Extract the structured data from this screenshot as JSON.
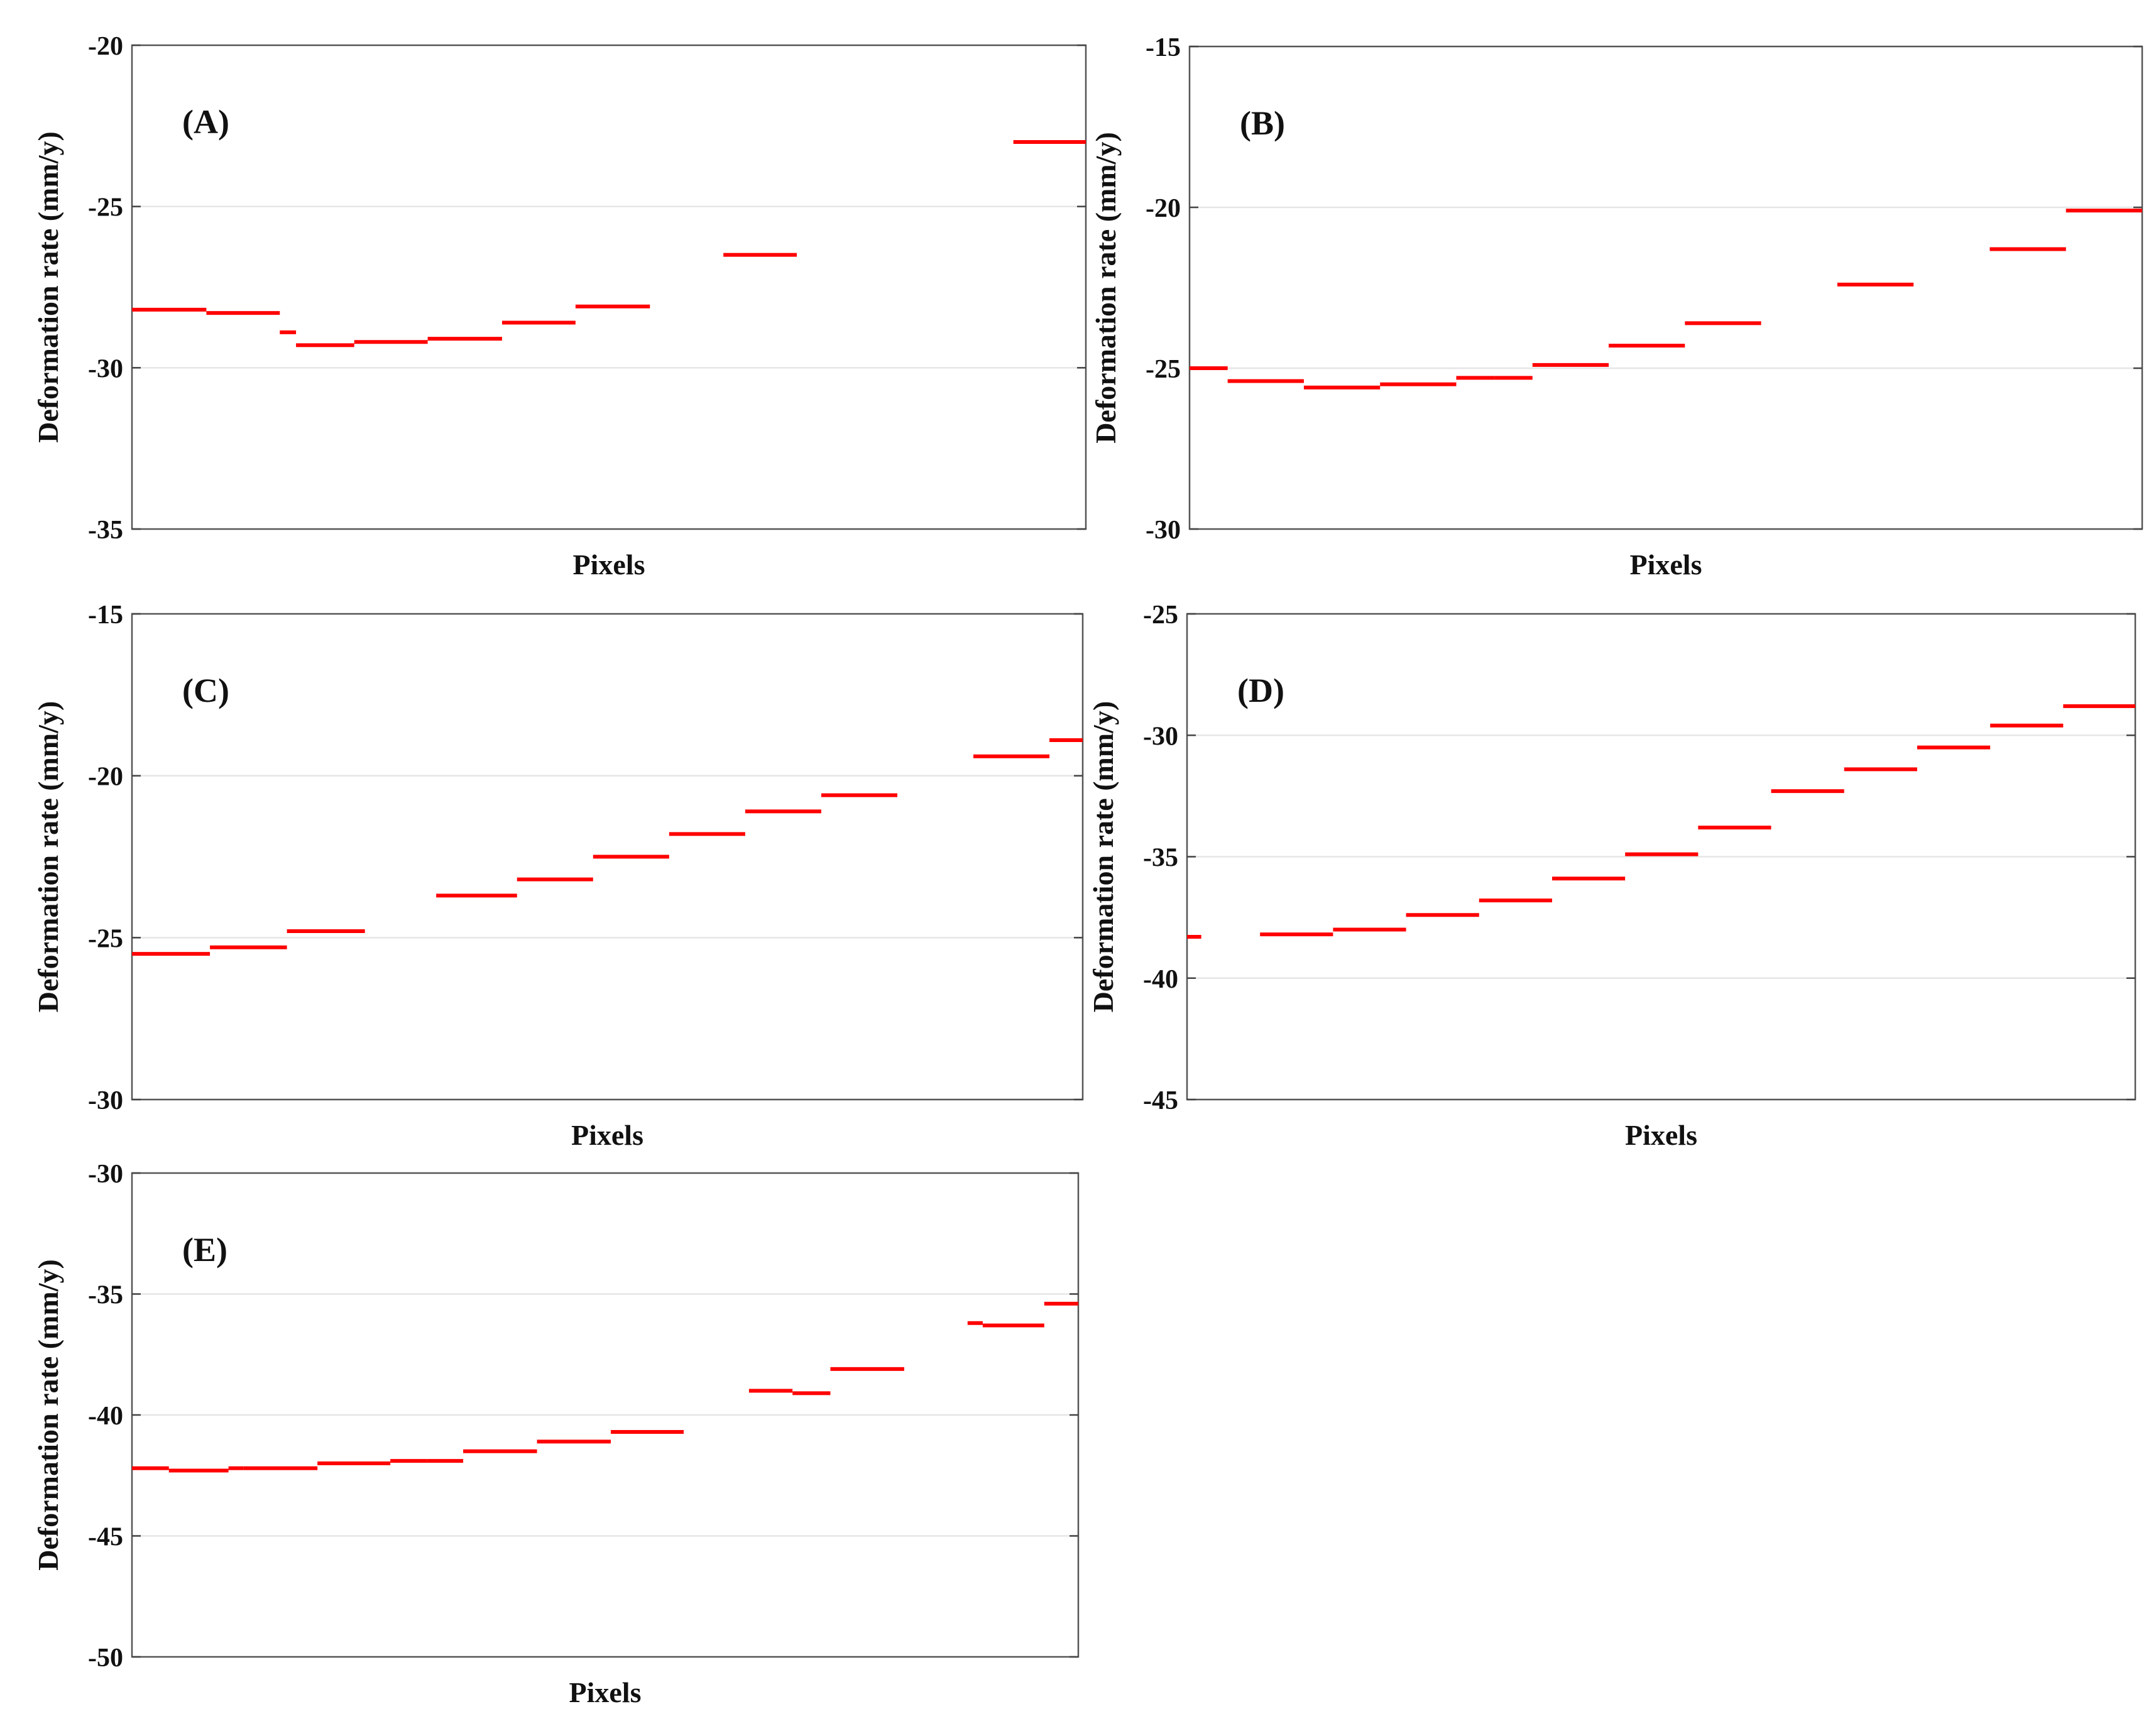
{
  "colors": {
    "series": "#ff0000",
    "frame": "#555555",
    "grid": "#e6e6e6",
    "text": "#111111"
  },
  "chart_data": [
    {
      "type": "line",
      "label": "(A)",
      "xlabel": "Pixels",
      "ylabel": "Deformation rate (mm/y)",
      "ylim": [
        -35,
        -20
      ],
      "yticks": [
        -20,
        -25,
        -30,
        -35
      ],
      "xlim": [
        0,
        100
      ],
      "grid": true,
      "segments": [
        {
          "x": [
            0.0,
            7.8
          ],
          "y": -28.2
        },
        {
          "x": [
            7.8,
            15.5
          ],
          "y": -28.3
        },
        {
          "x": [
            15.5,
            17.2
          ],
          "y": -28.9
        },
        {
          "x": [
            17.2,
            23.3
          ],
          "y": -29.3
        },
        {
          "x": [
            23.3,
            31.0
          ],
          "y": -29.2
        },
        {
          "x": [
            31.0,
            38.8
          ],
          "y": -29.1
        },
        {
          "x": [
            38.8,
            46.5
          ],
          "y": -28.6
        },
        {
          "x": [
            46.5,
            54.3
          ],
          "y": -28.1
        },
        {
          "x": [
            62.0,
            69.7
          ],
          "y": -26.5
        },
        {
          "x": [
            92.4,
            100.0
          ],
          "y": -23.0
        }
      ]
    },
    {
      "type": "line",
      "label": "(B)",
      "xlabel": "Pixels",
      "ylabel": "Deformation rate (mm/y)",
      "ylim": [
        -30,
        -15
      ],
      "yticks": [
        -15,
        -20,
        -25,
        -30
      ],
      "xlim": [
        0,
        100
      ],
      "grid": true,
      "segments": [
        {
          "x": [
            0.0,
            4.0
          ],
          "y": -25.0
        },
        {
          "x": [
            4.0,
            12.0
          ],
          "y": -25.4
        },
        {
          "x": [
            12.0,
            20.0
          ],
          "y": -25.6
        },
        {
          "x": [
            20.0,
            28.0
          ],
          "y": -25.5
        },
        {
          "x": [
            28.0,
            32.0
          ],
          "y": -25.3
        },
        {
          "x": [
            32.0,
            36.0
          ],
          "y": -25.3
        },
        {
          "x": [
            36.0,
            44.0
          ],
          "y": -24.9
        },
        {
          "x": [
            44.0,
            52.0
          ],
          "y": -24.3
        },
        {
          "x": [
            52.0,
            60.0
          ],
          "y": -23.6
        },
        {
          "x": [
            68.0,
            76.0
          ],
          "y": -22.4
        },
        {
          "x": [
            84.0,
            92.0
          ],
          "y": -21.3
        },
        {
          "x": [
            92.0,
            100.0
          ],
          "y": -20.1
        }
      ]
    },
    {
      "type": "line",
      "label": "(C)",
      "xlabel": "Pixels",
      "ylabel": "Deformation rate (mm/y)",
      "ylim": [
        -30,
        -15
      ],
      "yticks": [
        -15,
        -20,
        -25,
        -30
      ],
      "xlim": [
        0,
        100
      ],
      "grid": true,
      "segments": [
        {
          "x": [
            0.0,
            8.2
          ],
          "y": -25.5
        },
        {
          "x": [
            8.2,
            16.3
          ],
          "y": -25.3
        },
        {
          "x": [
            16.3,
            24.5
          ],
          "y": -24.8
        },
        {
          "x": [
            32.0,
            40.5
          ],
          "y": -23.7
        },
        {
          "x": [
            40.5,
            48.5
          ],
          "y": -23.2
        },
        {
          "x": [
            48.5,
            56.5
          ],
          "y": -22.5
        },
        {
          "x": [
            56.5,
            64.5
          ],
          "y": -21.8
        },
        {
          "x": [
            64.5,
            72.5
          ],
          "y": -21.1
        },
        {
          "x": [
            72.5,
            80.5
          ],
          "y": -20.6
        },
        {
          "x": [
            88.5,
            96.5
          ],
          "y": -19.4
        },
        {
          "x": [
            96.5,
            100.0
          ],
          "y": -18.9
        }
      ]
    },
    {
      "type": "line",
      "label": "(D)",
      "xlabel": "Pixels",
      "ylabel": "Deformation rate (mm/y)",
      "ylim": [
        -45,
        -25
      ],
      "yticks": [
        -25,
        -30,
        -35,
        -40,
        -45
      ],
      "xlim": [
        0,
        100
      ],
      "grid": true,
      "segments": [
        {
          "x": [
            0.0,
            1.5
          ],
          "y": -38.3
        },
        {
          "x": [
            7.7,
            15.4
          ],
          "y": -38.2
        },
        {
          "x": [
            15.4,
            23.1
          ],
          "y": -38.0
        },
        {
          "x": [
            23.1,
            30.8
          ],
          "y": -37.4
        },
        {
          "x": [
            30.8,
            38.5
          ],
          "y": -36.8
        },
        {
          "x": [
            38.5,
            46.2
          ],
          "y": -35.9
        },
        {
          "x": [
            46.2,
            53.9
          ],
          "y": -34.9
        },
        {
          "x": [
            53.9,
            61.6
          ],
          "y": -33.8
        },
        {
          "x": [
            61.6,
            69.3
          ],
          "y": -32.3
        },
        {
          "x": [
            69.3,
            77.0
          ],
          "y": -31.4
        },
        {
          "x": [
            77.0,
            84.7
          ],
          "y": -30.5
        },
        {
          "x": [
            84.7,
            92.4
          ],
          "y": -29.6
        },
        {
          "x": [
            92.4,
            100.0
          ],
          "y": -28.8
        }
      ]
    },
    {
      "type": "line",
      "label": "(E)",
      "xlabel": "Pixels",
      "ylabel": "Deformation rate (mm/y)",
      "ylim": [
        -50,
        -30
      ],
      "yticks": [
        -30,
        -35,
        -40,
        -45,
        -50
      ],
      "xlim": [
        0,
        100
      ],
      "grid": true,
      "segments": [
        {
          "x": [
            0.0,
            3.9
          ],
          "y": -42.2
        },
        {
          "x": [
            3.9,
            10.2
          ],
          "y": -42.3
        },
        {
          "x": [
            10.2,
            11.8
          ],
          "y": -42.2
        },
        {
          "x": [
            11.8,
            19.6
          ],
          "y": -42.2
        },
        {
          "x": [
            19.6,
            27.3
          ],
          "y": -42.0
        },
        {
          "x": [
            27.3,
            31.2
          ],
          "y": -41.9
        },
        {
          "x": [
            31.2,
            35.0
          ],
          "y": -41.9
        },
        {
          "x": [
            35.0,
            42.8
          ],
          "y": -41.5
        },
        {
          "x": [
            42.8,
            50.6
          ],
          "y": -41.1
        },
        {
          "x": [
            50.6,
            58.3
          ],
          "y": -40.7
        },
        {
          "x": [
            65.2,
            69.8
          ],
          "y": -39.0
        },
        {
          "x": [
            69.8,
            73.8
          ],
          "y": -39.1
        },
        {
          "x": [
            73.8,
            81.6
          ],
          "y": -38.1
        },
        {
          "x": [
            88.3,
            89.9
          ],
          "y": -36.2
        },
        {
          "x": [
            89.9,
            96.4
          ],
          "y": -36.3
        },
        {
          "x": [
            96.4,
            100.0
          ],
          "y": -35.4
        }
      ]
    }
  ]
}
